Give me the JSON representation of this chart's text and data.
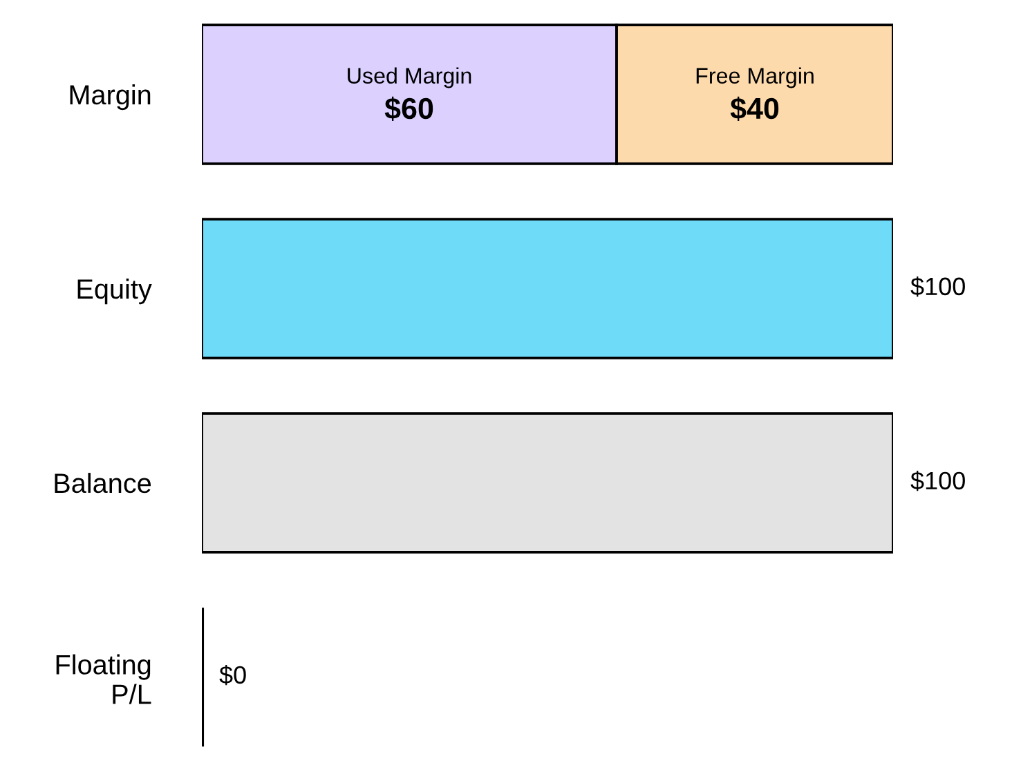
{
  "chart_data": {
    "type": "bar",
    "orientation": "horizontal",
    "stacked": true,
    "tick_labels": "y",
    "categories": [
      "Margin",
      "Equity",
      "Balance",
      "Floating\nP/L"
    ],
    "series": [
      {
        "name": "Used Margin",
        "color": "#dbd0fe",
        "values": [
          60,
          null,
          null,
          null
        ],
        "value_labels": [
          "$60",
          null,
          null,
          null
        ]
      },
      {
        "name": "Free Margin",
        "color": "#fddaab",
        "values": [
          40,
          null,
          null,
          null
        ],
        "value_labels": [
          "$40",
          null,
          null,
          null
        ]
      },
      {
        "colors": [
          null,
          "#6edbf8",
          "#e3e3e3",
          "#000000"
        ],
        "values": [
          null,
          100,
          100,
          0
        ],
        "value_labels": [
          null,
          "$100",
          "$100",
          "$0"
        ]
      }
    ]
  }
}
